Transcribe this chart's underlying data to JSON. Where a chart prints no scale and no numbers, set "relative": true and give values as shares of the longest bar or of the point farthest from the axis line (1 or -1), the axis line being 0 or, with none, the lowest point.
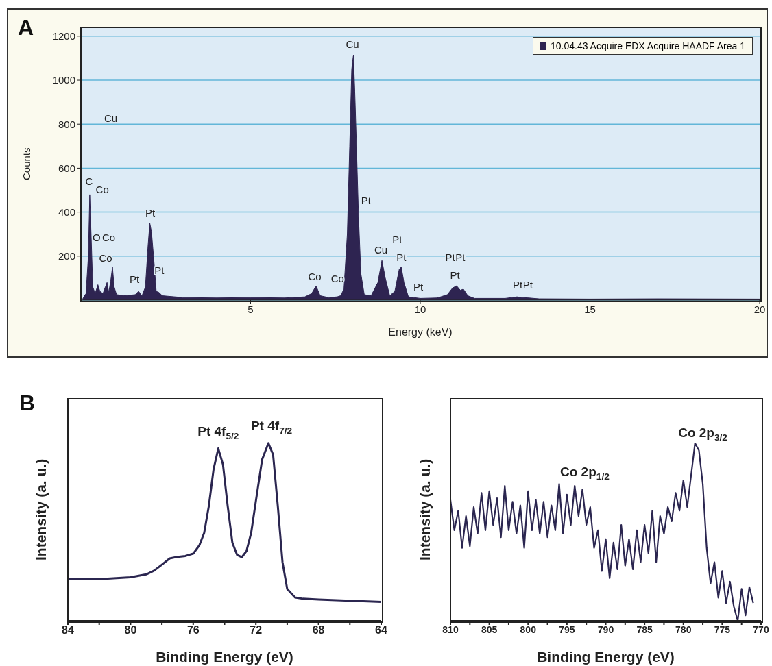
{
  "chart_data": [
    {
      "type": "area",
      "title": "A",
      "xlabel": "Energy (keV)",
      "ylabel": "Counts",
      "x": [
        0.05,
        0.15,
        0.22,
        0.26,
        0.3,
        0.35,
        0.42,
        0.5,
        0.56,
        0.65,
        0.72,
        0.77,
        0.82,
        0.88,
        0.93,
        0.98,
        1.05,
        1.3,
        1.6,
        1.7,
        1.8,
        1.9,
        1.98,
        2.03,
        2.08,
        2.15,
        2.22,
        2.3,
        2.4,
        3.0,
        4.0,
        5.0,
        6.0,
        6.6,
        6.8,
        6.93,
        7.05,
        7.3,
        7.55,
        7.65,
        7.75,
        7.85,
        7.92,
        7.98,
        8.03,
        8.07,
        8.12,
        8.18,
        8.25,
        8.35,
        8.55,
        8.75,
        8.87,
        8.97,
        9.1,
        9.25,
        9.38,
        9.44,
        9.52,
        9.65,
        10.0,
        10.5,
        10.8,
        10.95,
        11.07,
        11.18,
        11.27,
        11.4,
        11.6,
        12.5,
        12.85,
        13.0,
        13.2,
        13.5,
        15,
        17,
        20
      ],
      "series": [
        {
          "name": "10.04.43 Acquire EDX Acquire HAADF Area 1",
          "color": "#2e2451",
          "values": [
            5,
            30,
            200,
            480,
            300,
            60,
            30,
            70,
            40,
            30,
            60,
            80,
            35,
            90,
            150,
            60,
            25,
            20,
            25,
            40,
            20,
            60,
            250,
            350,
            310,
            180,
            40,
            35,
            20,
            12,
            10,
            12,
            10,
            15,
            30,
            65,
            20,
            12,
            15,
            20,
            50,
            300,
            700,
            1050,
            1115,
            950,
            700,
            380,
            120,
            25,
            20,
            80,
            180,
            100,
            20,
            40,
            140,
            150,
            80,
            15,
            8,
            10,
            25,
            55,
            65,
            45,
            50,
            20,
            8,
            8,
            15,
            12,
            10,
            6,
            5,
            6,
            5
          ]
        }
      ],
      "xlim": [
        0,
        20
      ],
      "xticks": [
        5,
        10,
        15,
        20
      ],
      "ylim": [
        0,
        1240
      ],
      "yticks": [
        200,
        400,
        600,
        800,
        1000,
        1200
      ],
      "grid": "y",
      "legend": "top right",
      "annotations": [
        "C",
        "Co",
        "Cu",
        "O",
        "Co",
        "Co",
        "Pt",
        "Pt",
        "Pt",
        "Co",
        "Co",
        "Cu",
        "Pt",
        "Cu",
        "Pt",
        "Pt",
        "Pt",
        "Pt",
        "Pt",
        "Pt",
        "Pt",
        "Pt"
      ]
    },
    {
      "type": "line",
      "title": "B",
      "xlabel": "Binding Energy (eV)",
      "ylabel": "Intensity (a. u.)",
      "relative": true,
      "x": [
        84,
        82,
        80,
        79,
        78.5,
        78,
        77.5,
        77,
        76.5,
        76,
        75.6,
        75.3,
        75,
        74.7,
        74.4,
        74.1,
        73.8,
        73.5,
        73.2,
        72.9,
        72.6,
        72.3,
        72.0,
        71.6,
        71.2,
        70.9,
        70.6,
        70.3,
        70.0,
        69.5,
        69,
        68,
        66,
        64
      ],
      "values": [
        0.237,
        0.234,
        0.245,
        0.261,
        0.282,
        0.316,
        0.351,
        0.36,
        0.365,
        0.378,
        0.426,
        0.495,
        0.647,
        0.853,
        0.97,
        0.88,
        0.647,
        0.44,
        0.371,
        0.358,
        0.392,
        0.495,
        0.674,
        0.908,
        1.0,
        0.935,
        0.647,
        0.33,
        0.179,
        0.131,
        0.124,
        0.12,
        0.113,
        0.106
      ],
      "color": "#2b2650",
      "xlim": [
        84,
        64
      ],
      "xticks": [
        84,
        {
          "value": 82,
          "label": null
        },
        80,
        {
          "value": 78,
          "label": null
        },
        76,
        {
          "value": 74,
          "label": null
        },
        72,
        {
          "value": 70,
          "label": null
        },
        68,
        {
          "value": 66,
          "label": null
        },
        64
      ],
      "annotations": [
        "Pt 4f$_{5/2}$",
        "Pt 4f$_{7/2}$"
      ]
    },
    {
      "type": "line",
      "xlabel": "Binding Energy (eV)",
      "ylabel": "Intensity (a. u.)",
      "relative": true,
      "x": [
        810,
        809.5,
        809,
        808.5,
        808,
        807.5,
        807,
        806.5,
        806,
        805.5,
        805,
        804.5,
        804,
        803.5,
        803,
        802.5,
        802,
        801.5,
        801,
        800.5,
        800,
        799.5,
        799,
        798.5,
        798,
        797.5,
        797,
        796.5,
        796,
        795.5,
        795,
        794.5,
        794,
        793.5,
        793,
        792.5,
        792,
        791.5,
        791,
        790.5,
        790,
        789.5,
        789,
        788.5,
        788,
        787.5,
        787,
        786.5,
        786,
        785.5,
        785,
        784.5,
        784,
        783.5,
        783,
        782.5,
        782,
        781.5,
        781,
        780.5,
        780,
        779.5,
        779,
        778.5,
        778,
        777.5,
        777,
        776.5,
        776,
        775.5,
        775,
        774.5,
        774,
        773.5,
        773,
        772.5,
        772,
        771.5,
        771
      ],
      "values": [
        0.68,
        0.51,
        0.62,
        0.41,
        0.59,
        0.42,
        0.64,
        0.49,
        0.72,
        0.51,
        0.73,
        0.54,
        0.69,
        0.47,
        0.76,
        0.51,
        0.67,
        0.49,
        0.65,
        0.41,
        0.73,
        0.51,
        0.68,
        0.49,
        0.67,
        0.47,
        0.65,
        0.51,
        0.77,
        0.49,
        0.71,
        0.54,
        0.76,
        0.59,
        0.74,
        0.54,
        0.64,
        0.41,
        0.51,
        0.28,
        0.46,
        0.24,
        0.44,
        0.29,
        0.54,
        0.31,
        0.46,
        0.29,
        0.51,
        0.33,
        0.54,
        0.38,
        0.62,
        0.33,
        0.59,
        0.49,
        0.64,
        0.56,
        0.72,
        0.62,
        0.79,
        0.64,
        0.82,
        1.0,
        0.96,
        0.77,
        0.41,
        0.21,
        0.33,
        0.13,
        0.28,
        0.1,
        0.22,
        0.08,
        0,
        0.18,
        0.03,
        0.19,
        0.1
      ],
      "color": "#2b2650",
      "xlim": [
        810,
        770
      ],
      "xticks": [
        810,
        {
          "value": 807.5,
          "label": null
        },
        805,
        {
          "value": 802.5,
          "label": null
        },
        800,
        {
          "value": 797.5,
          "label": null
        },
        795,
        {
          "value": 792.5,
          "label": null
        },
        790,
        {
          "value": 787.5,
          "label": null
        },
        785,
        {
          "value": 782.5,
          "label": null
        },
        780,
        {
          "value": 777.5,
          "label": null
        },
        775,
        {
          "value": 772.5,
          "label": null
        },
        770
      ],
      "annotations": [
        "Co 2p$_{1/2}$",
        "Co 2p$_{3/2}$"
      ]
    }
  ]
}
